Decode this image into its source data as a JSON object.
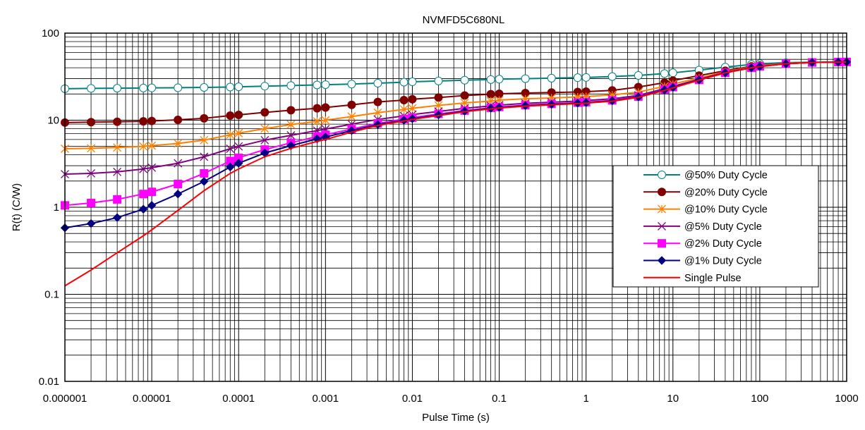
{
  "chart_data": {
    "type": "line",
    "title": "NVMFD5C680NL",
    "xlabel": "Pulse Time (s)",
    "ylabel": "R(t) (C/W)",
    "x_scale": "log",
    "y_scale": "log",
    "xlim": [
      1e-06,
      1000
    ],
    "ylim": [
      0.01,
      100
    ],
    "x_ticks": [
      "0.000001",
      "0.00001",
      "0.0001",
      "0.001",
      "0.01",
      "0.1",
      "1",
      "10",
      "100",
      "1000"
    ],
    "y_ticks": [
      "0.01",
      "0.1",
      "1",
      "10",
      "100"
    ],
    "grid": true,
    "legend_position": "right",
    "series": [
      {
        "name": "@50% Duty Cycle",
        "color": "#008080",
        "marker": "open-circle",
        "x": [
          1e-06,
          2e-06,
          4e-06,
          8e-06,
          1e-05,
          2e-05,
          4e-05,
          8e-05,
          0.0001,
          0.0002,
          0.0004,
          0.0008,
          0.001,
          0.002,
          0.004,
          0.008,
          0.01,
          0.02,
          0.04,
          0.08,
          0.1,
          0.2,
          0.4,
          0.8,
          1,
          2,
          4,
          8,
          10,
          20,
          40,
          80,
          100,
          200,
          400,
          800,
          1000
        ],
        "y": [
          23,
          23.2,
          23.3,
          23.4,
          23.5,
          23.6,
          23.8,
          24,
          24.2,
          24.6,
          25,
          25.4,
          25.6,
          26,
          26.6,
          27.3,
          27.6,
          28.2,
          28.8,
          29.3,
          29.6,
          30,
          30.4,
          30.8,
          31,
          31.7,
          32.7,
          34.3,
          35,
          37.6,
          40.7,
          43.7,
          44.5,
          45.8,
          46.3,
          46.6,
          46.7
        ]
      },
      {
        "name": "@20% Duty Cycle",
        "color": "#800000",
        "marker": "filled-circle",
        "x": [
          1e-06,
          2e-06,
          4e-06,
          8e-06,
          1e-05,
          2e-05,
          4e-05,
          8e-05,
          0.0001,
          0.0002,
          0.0004,
          0.0008,
          0.001,
          0.002,
          0.004,
          0.008,
          0.01,
          0.02,
          0.04,
          0.08,
          0.1,
          0.2,
          0.4,
          0.8,
          1,
          2,
          4,
          8,
          10,
          20,
          40,
          80,
          100,
          200,
          400,
          800,
          1000
        ],
        "y": [
          9.4,
          9.5,
          9.6,
          9.7,
          9.8,
          10.1,
          10.5,
          11.3,
          11.5,
          12.3,
          13,
          13.7,
          14,
          15,
          16.2,
          17,
          17.4,
          18.2,
          19.2,
          19.9,
          20.1,
          20.5,
          20.8,
          21.1,
          21.3,
          22,
          24,
          27,
          28.5,
          32.5,
          37,
          41.5,
          42.5,
          45,
          46,
          46.5,
          46.7
        ]
      },
      {
        "name": "@10% Duty Cycle",
        "color": "#ff8000",
        "marker": "asterisk",
        "x": [
          1e-06,
          2e-06,
          4e-06,
          8e-06,
          1e-05,
          2e-05,
          4e-05,
          8e-05,
          0.0001,
          0.0002,
          0.0004,
          0.0008,
          0.001,
          0.002,
          0.004,
          0.008,
          0.01,
          0.02,
          0.04,
          0.08,
          0.1,
          0.2,
          0.4,
          0.8,
          1,
          2,
          4,
          8,
          10,
          20,
          40,
          80,
          100,
          200,
          400,
          800,
          1000
        ],
        "y": [
          4.7,
          4.75,
          4.85,
          5,
          5.1,
          5.4,
          5.9,
          6.8,
          7.1,
          8,
          8.9,
          9.7,
          10,
          11,
          12.2,
          13.3,
          13.7,
          14.8,
          15.8,
          16.6,
          17,
          17.6,
          18,
          18.5,
          18.7,
          19.5,
          21,
          24.5,
          26,
          30.5,
          36,
          41,
          42,
          45,
          46,
          46.5,
          46.7
        ]
      },
      {
        "name": "@5% Duty Cycle",
        "color": "#800080",
        "marker": "x",
        "x": [
          1e-06,
          2e-06,
          4e-06,
          8e-06,
          1e-05,
          2e-05,
          4e-05,
          8e-05,
          0.0001,
          0.0002,
          0.0004,
          0.0008,
          0.001,
          0.002,
          0.004,
          0.008,
          0.01,
          0.02,
          0.04,
          0.08,
          0.1,
          0.2,
          0.4,
          0.8,
          1,
          2,
          4,
          8,
          10,
          20,
          40,
          80,
          100,
          200,
          400,
          800,
          1000
        ],
        "y": [
          2.4,
          2.45,
          2.55,
          2.75,
          2.85,
          3.2,
          3.8,
          4.7,
          5,
          5.9,
          6.7,
          7.6,
          7.9,
          9,
          10.2,
          11.2,
          11.6,
          12.6,
          13.7,
          14.6,
          14.9,
          15.6,
          16.1,
          16.6,
          16.8,
          17.6,
          19.3,
          23,
          24.5,
          29.5,
          35.5,
          40.5,
          41.5,
          44.5,
          46,
          46.5,
          46.7
        ]
      },
      {
        "name": "@2% Duty Cycle",
        "color": "#ff00ff",
        "marker": "filled-square",
        "x": [
          1e-06,
          2e-06,
          4e-06,
          8e-06,
          1e-05,
          2e-05,
          4e-05,
          8e-05,
          0.0001,
          0.0002,
          0.0004,
          0.0008,
          0.001,
          0.002,
          0.004,
          0.008,
          0.01,
          0.02,
          0.04,
          0.08,
          0.1,
          0.2,
          0.4,
          0.8,
          1,
          2,
          4,
          8,
          10,
          20,
          40,
          80,
          100,
          200,
          400,
          800,
          1000
        ],
        "y": [
          1.05,
          1.12,
          1.23,
          1.42,
          1.5,
          1.85,
          2.45,
          3.4,
          3.7,
          4.6,
          5.5,
          6.5,
          6.8,
          7.9,
          9.2,
          10.3,
          10.7,
          11.8,
          12.9,
          13.9,
          14.2,
          14.9,
          15.4,
          15.9,
          16.1,
          16.9,
          18.7,
          22.5,
          24,
          29,
          35,
          40,
          41.5,
          44.5,
          46,
          46.5,
          46.7
        ]
      },
      {
        "name": "@1% Duty Cycle",
        "color": "#000080",
        "marker": "filled-diamond",
        "x": [
          1e-06,
          2e-06,
          4e-06,
          8e-06,
          1e-05,
          2e-05,
          4e-05,
          8e-05,
          0.0001,
          0.0002,
          0.0004,
          0.0008,
          0.001,
          0.002,
          0.004,
          0.008,
          0.01,
          0.02,
          0.04,
          0.08,
          0.1,
          0.2,
          0.4,
          0.8,
          1,
          2,
          4,
          8,
          10,
          20,
          40,
          80,
          100,
          200,
          400,
          800,
          1000
        ],
        "y": [
          0.58,
          0.65,
          0.76,
          0.95,
          1.05,
          1.42,
          1.98,
          2.9,
          3.2,
          4.2,
          5.1,
          6.1,
          6.4,
          7.6,
          8.9,
          10,
          10.4,
          11.5,
          12.7,
          13.7,
          14,
          14.7,
          15.2,
          15.7,
          15.9,
          16.7,
          18.5,
          22.3,
          23.8,
          29,
          35,
          40,
          41.3,
          44.5,
          46,
          46.5,
          46.7
        ]
      },
      {
        "name": "Single Pulse",
        "color": "#ff0000",
        "marker": "none",
        "x": [
          1e-06,
          2e-06,
          4e-06,
          8e-06,
          1e-05,
          2e-05,
          4e-05,
          8e-05,
          0.0001,
          0.0002,
          0.0004,
          0.0008,
          0.001,
          0.002,
          0.004,
          0.008,
          0.01,
          0.02,
          0.04,
          0.08,
          0.1,
          0.2,
          0.4,
          0.8,
          1,
          2,
          4,
          8,
          10,
          20,
          40,
          80,
          100,
          200,
          400,
          800,
          1000
        ],
        "y": [
          0.125,
          0.19,
          0.3,
          0.47,
          0.55,
          0.92,
          1.55,
          2.45,
          2.75,
          3.8,
          4.75,
          5.7,
          6,
          7.3,
          8.7,
          9.8,
          10.2,
          11.3,
          12.5,
          13.5,
          13.8,
          14.5,
          15,
          15.5,
          15.7,
          16.5,
          18.3,
          22,
          23.5,
          28.8,
          35,
          40,
          41.2,
          44.5,
          46,
          46.5,
          46.7
        ]
      }
    ]
  }
}
